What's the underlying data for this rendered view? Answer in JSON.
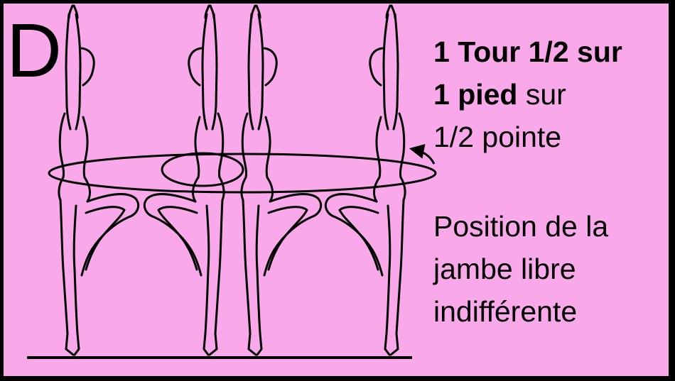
{
  "letter": "D",
  "title_line1": "1 Tour 1/2 sur",
  "title_line2_bold": "1 pied",
  "title_line2_rest": " sur",
  "title_line3": "1/2 pointe",
  "note_line1": "Position de la",
  "note_line2": "jambe libre",
  "note_line3": "indifférente",
  "colors": {
    "background": "#f9a8ea",
    "ink": "#000000"
  },
  "icons": [
    "pirouette-figure",
    "rotation-arrow",
    "floor-line"
  ]
}
